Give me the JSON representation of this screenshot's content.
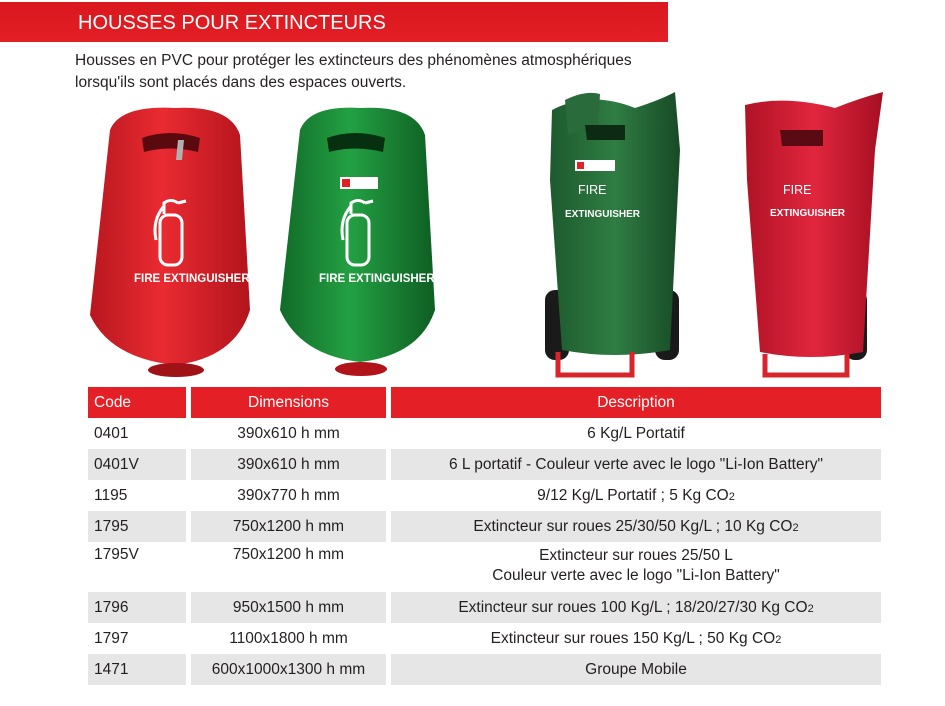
{
  "header": {
    "title": "HOUSSES POUR EXTINCTEURS"
  },
  "intro": {
    "line1": "Housses en PVC pour protéger les extincteurs des phénomènes atmosphériques",
    "line2": "lorsqu'ils sont placés dans des espaces ouverts."
  },
  "products": [
    {
      "id": "red-portable",
      "line1": "FIRE EXTINGUISHER",
      "color": "#e0242b"
    },
    {
      "id": "green-portable",
      "line1": "FIRE EXTINGUISHER",
      "color": "#1f8f3a"
    },
    {
      "id": "green-wheeled",
      "line1": "FIRE",
      "line2": "EXTINGUISHER",
      "color": "#27713a"
    },
    {
      "id": "red-wheeled",
      "line1": "FIRE",
      "line2": "EXTINGUISHER",
      "color": "#d81e37"
    }
  ],
  "table": {
    "headers": {
      "code": "Code",
      "dimensions": "Dimensions",
      "description": "Description"
    },
    "rows": [
      {
        "code": "0401",
        "dimensions": "390x610 h mm",
        "description": "6 Kg/L  Portatif"
      },
      {
        "code": "0401V",
        "dimensions": "390x610 h mm",
        "description": "6 L portatif  - Couleur verte avec le logo \"Li-Ion Battery\""
      },
      {
        "code": "1195",
        "dimensions": "390x770 h mm",
        "description": "9/12 Kg/L Portatif  ; 5 Kg CO",
        "sub": "2"
      },
      {
        "code": "1795",
        "dimensions": "750x1200 h mm",
        "description": "Extincteur sur roues 25/30/50 Kg/L ; 10 Kg CO",
        "sub": "2"
      },
      {
        "code": "1795V",
        "dimensions": "750x1200 h mm",
        "description": "Extincteur sur roues  25/50 L",
        "description2": "Couleur verte avec le logo \"Li-Ion Battery\""
      },
      {
        "code": "1796",
        "dimensions": "950x1500 h mm",
        "description": "Extincteur sur roues 100 Kg/L ; 18/20/27/30 Kg CO",
        "sub": "2"
      },
      {
        "code": "1797",
        "dimensions": "1100x1800 h mm",
        "description": "Extincteur sur roues 150 Kg/L ; 50 Kg CO",
        "sub": "2"
      },
      {
        "code": "1471",
        "dimensions": "600x1000x1300 h mm",
        "description": "Groupe Mobile"
      }
    ]
  }
}
